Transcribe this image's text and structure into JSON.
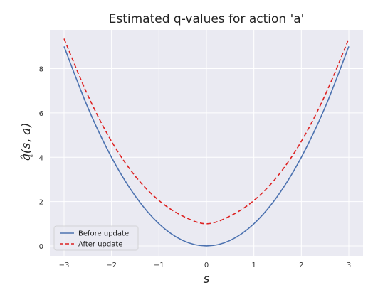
{
  "chart_data": {
    "type": "line",
    "title": "Estimated q-values for action 'a'",
    "xlabel": "s",
    "ylabel": "q̂(s, a)",
    "xlim": [
      -3.3,
      3.3
    ],
    "ylim": [
      -0.45,
      9.75
    ],
    "xticks": [
      -3,
      -2,
      -1,
      0,
      1,
      2,
      3
    ],
    "xtick_labels": [
      "−3",
      "−2",
      "−1",
      "0",
      "1",
      "2",
      "3"
    ],
    "yticks": [
      0,
      2,
      4,
      6,
      8
    ],
    "ytick_labels": [
      "0",
      "2",
      "4",
      "6",
      "8"
    ],
    "grid": true,
    "legend_position": "lower-left",
    "series": [
      {
        "name": "Before update",
        "color": "#4c72b0",
        "style": "solid",
        "x": [
          -3,
          -2.5,
          -2,
          -1.5,
          -1,
          -0.5,
          0,
          0.5,
          1,
          1.5,
          2,
          2.5,
          3
        ],
        "y": [
          9,
          6.25,
          4,
          2.25,
          1,
          0.25,
          0,
          0.25,
          1,
          2.25,
          4,
          6.25,
          9
        ]
      },
      {
        "name": "After update",
        "color": "#dd2222",
        "style": "dashed",
        "x": [
          -3,
          -2.5,
          -2,
          -1.5,
          -1,
          -0.5,
          0,
          0.5,
          1,
          1.5,
          2,
          2.5,
          3
        ],
        "y": [
          9.35,
          6.8,
          4.72,
          3.15,
          2.05,
          1.35,
          1.0,
          1.35,
          2.05,
          3.15,
          4.72,
          6.8,
          9.35
        ]
      }
    ]
  }
}
